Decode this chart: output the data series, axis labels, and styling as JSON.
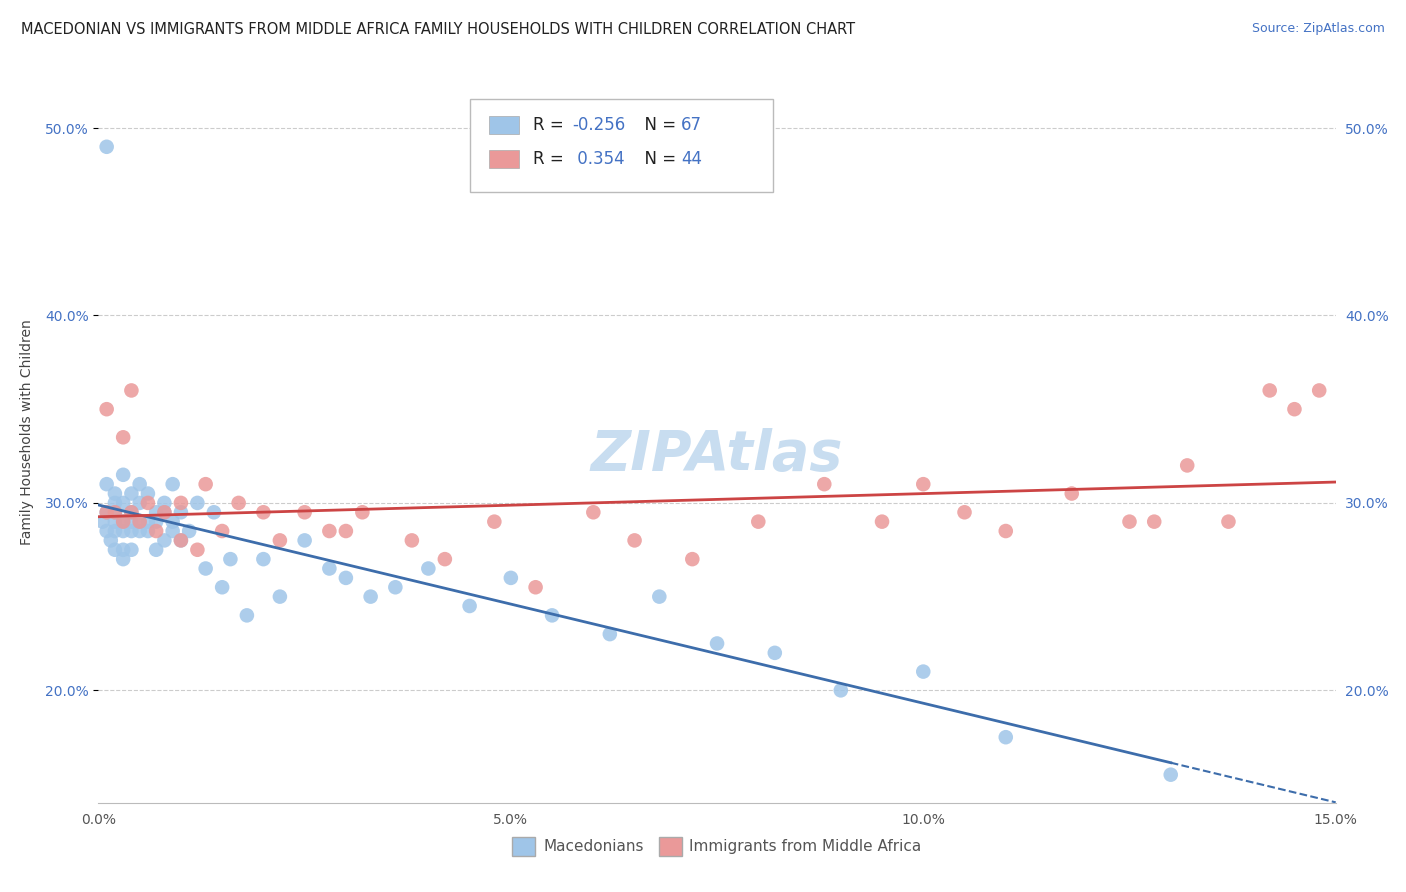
{
  "title": "MACEDONIAN VS IMMIGRANTS FROM MIDDLE AFRICA FAMILY HOUSEHOLDS WITH CHILDREN CORRELATION CHART",
  "source": "Source: ZipAtlas.com",
  "ylabel": "Family Households with Children",
  "watermark": "ZIPAtlas",
  "xlim": [
    0.0,
    0.15
  ],
  "ylim": [
    0.14,
    0.535
  ],
  "yticks": [
    0.2,
    0.3,
    0.4,
    0.5
  ],
  "ytick_labels": [
    "20.0%",
    "30.0%",
    "40.0%",
    "50.0%"
  ],
  "xticks": [
    0.0,
    0.05,
    0.1,
    0.15
  ],
  "xtick_labels": [
    "0.0%",
    "5.0%",
    "10.0%",
    "15.0%"
  ],
  "color_blue": "#9fc5e8",
  "color_pink": "#ea9999",
  "color_line_blue": "#3d6dab",
  "color_line_pink": "#cc4444",
  "blue_x": [
    0.0005,
    0.001,
    0.001,
    0.001,
    0.001,
    0.0015,
    0.002,
    0.002,
    0.002,
    0.002,
    0.002,
    0.002,
    0.003,
    0.003,
    0.003,
    0.003,
    0.003,
    0.003,
    0.004,
    0.004,
    0.004,
    0.004,
    0.004,
    0.005,
    0.005,
    0.005,
    0.005,
    0.006,
    0.006,
    0.006,
    0.007,
    0.007,
    0.007,
    0.008,
    0.008,
    0.008,
    0.009,
    0.009,
    0.009,
    0.01,
    0.01,
    0.011,
    0.012,
    0.013,
    0.014,
    0.015,
    0.016,
    0.018,
    0.02,
    0.022,
    0.025,
    0.028,
    0.03,
    0.033,
    0.036,
    0.04,
    0.045,
    0.05,
    0.055,
    0.062,
    0.068,
    0.075,
    0.082,
    0.09,
    0.1,
    0.11,
    0.13
  ],
  "blue_y": [
    0.29,
    0.49,
    0.295,
    0.285,
    0.31,
    0.28,
    0.295,
    0.285,
    0.3,
    0.275,
    0.29,
    0.305,
    0.3,
    0.29,
    0.285,
    0.27,
    0.275,
    0.315,
    0.295,
    0.285,
    0.305,
    0.29,
    0.275,
    0.3,
    0.31,
    0.285,
    0.29,
    0.305,
    0.285,
    0.29,
    0.295,
    0.275,
    0.29,
    0.3,
    0.28,
    0.295,
    0.285,
    0.31,
    0.29,
    0.295,
    0.28,
    0.285,
    0.3,
    0.265,
    0.295,
    0.255,
    0.27,
    0.24,
    0.27,
    0.25,
    0.28,
    0.265,
    0.26,
    0.25,
    0.255,
    0.265,
    0.245,
    0.26,
    0.24,
    0.23,
    0.25,
    0.225,
    0.22,
    0.2,
    0.21,
    0.175,
    0.155
  ],
  "pink_x": [
    0.001,
    0.001,
    0.002,
    0.003,
    0.003,
    0.004,
    0.004,
    0.005,
    0.006,
    0.007,
    0.008,
    0.01,
    0.01,
    0.012,
    0.013,
    0.015,
    0.017,
    0.02,
    0.022,
    0.025,
    0.028,
    0.03,
    0.032,
    0.038,
    0.042,
    0.048,
    0.053,
    0.06,
    0.065,
    0.072,
    0.08,
    0.088,
    0.095,
    0.1,
    0.105,
    0.11,
    0.118,
    0.125,
    0.128,
    0.132,
    0.137,
    0.142,
    0.145,
    0.148
  ],
  "pink_y": [
    0.295,
    0.35,
    0.295,
    0.29,
    0.335,
    0.295,
    0.36,
    0.29,
    0.3,
    0.285,
    0.295,
    0.28,
    0.3,
    0.275,
    0.31,
    0.285,
    0.3,
    0.295,
    0.28,
    0.295,
    0.285,
    0.285,
    0.295,
    0.28,
    0.27,
    0.29,
    0.255,
    0.295,
    0.28,
    0.27,
    0.29,
    0.31,
    0.29,
    0.31,
    0.295,
    0.285,
    0.305,
    0.29,
    0.29,
    0.32,
    0.29,
    0.36,
    0.35,
    0.36
  ],
  "title_fontsize": 10.5,
  "axis_label_fontsize": 10,
  "tick_fontsize": 10,
  "legend_fontsize": 12,
  "source_fontsize": 9,
  "watermark_fontsize": 40,
  "watermark_color": "#c8ddf0",
  "background_color": "#ffffff",
  "grid_color": "#cccccc"
}
